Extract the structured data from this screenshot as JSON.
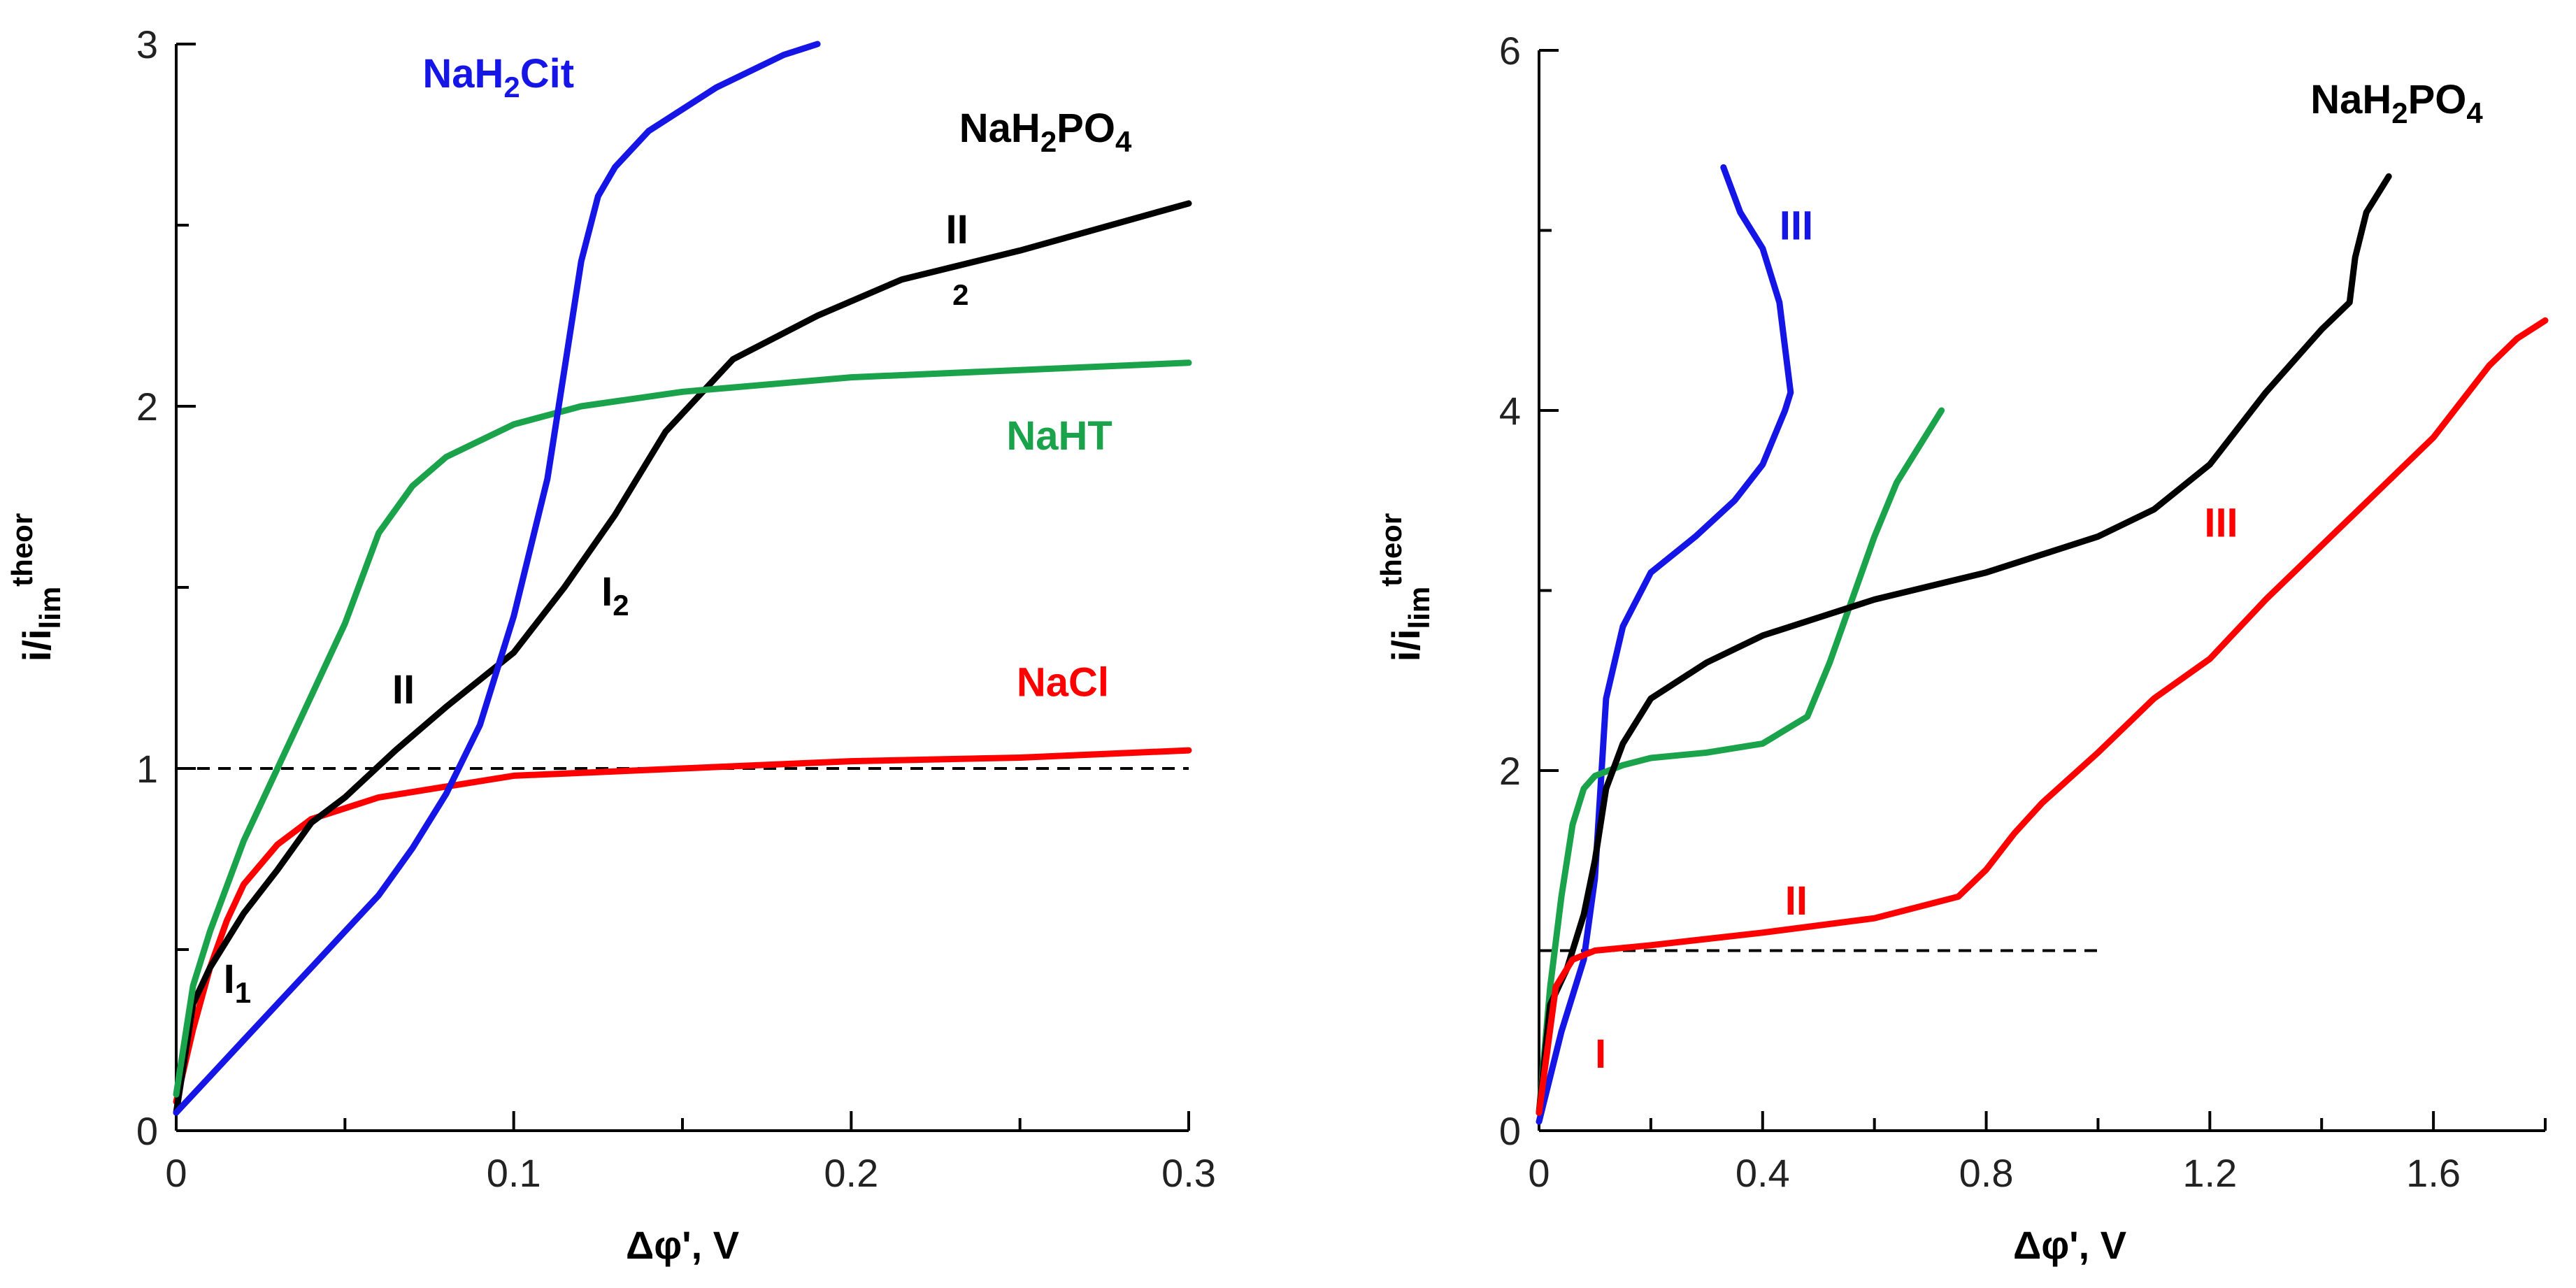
{
  "chart_data": [
    {
      "type": "line",
      "ylabel_main": "i/i",
      "ylabel_sub": "lim",
      "ylabel_sup": "theor",
      "xlabel": "Δφ', V",
      "xlim": [
        0,
        0.3
      ],
      "ylim": [
        0,
        3
      ],
      "xticks": [
        0,
        0.1,
        0.2,
        0.3
      ],
      "xtick_labels": [
        "0",
        "0.1",
        "0.2",
        "0.3"
      ],
      "yticks": [
        0,
        1,
        2,
        3
      ],
      "ytick_labels": [
        "0",
        "1",
        "2",
        "3"
      ],
      "reference_line": {
        "y": 1,
        "style": "dashed",
        "x_range": [
          0,
          0.3
        ]
      },
      "series": [
        {
          "name": "NaCl",
          "color": "#ff0000",
          "x": [
            0,
            0.005,
            0.01,
            0.015,
            0.02,
            0.03,
            0.04,
            0.06,
            0.08,
            0.1,
            0.15,
            0.2,
            0.25,
            0.3
          ],
          "y": [
            0.08,
            0.28,
            0.45,
            0.58,
            0.68,
            0.79,
            0.86,
            0.92,
            0.95,
            0.98,
            1.0,
            1.02,
            1.03,
            1.05
          ]
        },
        {
          "name": "NaH2PO4",
          "color": "#000000",
          "x": [
            0,
            0.005,
            0.01,
            0.02,
            0.03,
            0.04,
            0.05,
            0.065,
            0.08,
            0.1,
            0.115,
            0.13,
            0.145,
            0.165,
            0.19,
            0.215,
            0.25,
            0.3
          ],
          "y": [
            0.05,
            0.35,
            0.45,
            0.6,
            0.72,
            0.85,
            0.92,
            1.05,
            1.17,
            1.32,
            1.5,
            1.7,
            1.93,
            2.13,
            2.25,
            2.35,
            2.43,
            2.56
          ]
        },
        {
          "name": "NaHT",
          "color": "#1aa34a",
          "x": [
            0,
            0.005,
            0.01,
            0.02,
            0.03,
            0.04,
            0.05,
            0.06,
            0.07,
            0.08,
            0.1,
            0.12,
            0.15,
            0.2,
            0.25,
            0.3
          ],
          "y": [
            0.1,
            0.4,
            0.55,
            0.8,
            1.0,
            1.2,
            1.4,
            1.65,
            1.78,
            1.86,
            1.95,
            2.0,
            2.04,
            2.08,
            2.1,
            2.12
          ]
        },
        {
          "name": "NaH2Cit",
          "color": "#1515e6",
          "x": [
            0,
            0.01,
            0.02,
            0.03,
            0.04,
            0.05,
            0.06,
            0.07,
            0.08,
            0.09,
            0.1,
            0.11,
            0.115,
            0.12,
            0.125,
            0.13,
            0.14,
            0.16,
            0.18,
            0.19
          ],
          "y": [
            0.05,
            0.15,
            0.25,
            0.35,
            0.45,
            0.55,
            0.65,
            0.78,
            0.93,
            1.12,
            1.42,
            1.8,
            2.1,
            2.4,
            2.58,
            2.66,
            2.76,
            2.88,
            2.97,
            3.0
          ]
        }
      ],
      "annotations": [
        {
          "text": "NaH",
          "sub": "2",
          "text2": "Cit",
          "color": "#1515e6",
          "x": 0.073,
          "y": 2.88
        },
        {
          "text": "NaH",
          "sub": "2",
          "text2": "PO",
          "sub2": "4",
          "color": "#000000",
          "x": 0.232,
          "y": 2.73
        },
        {
          "text": "NaHT",
          "color": "#1aa34a",
          "x": 0.246,
          "y": 1.88
        },
        {
          "text": "NaCl",
          "color": "#ff0000",
          "x": 0.249,
          "y": 1.2
        },
        {
          "text": "II",
          "color": "#000000",
          "x": 0.228,
          "y": 2.45
        },
        {
          "text": "2",
          "color": "#000000",
          "x": 0.23,
          "y": 2.28,
          "small": true
        },
        {
          "text": "I",
          "sub": "2",
          "color": "#000000",
          "x": 0.126,
          "y": 1.45
        },
        {
          "text": "II",
          "color": "#000000",
          "x": 0.064,
          "y": 1.18
        },
        {
          "text": "I",
          "sub": "1",
          "color": "#000000",
          "x": 0.014,
          "y": 0.38
        }
      ]
    },
    {
      "type": "line",
      "ylabel_main": "i/i",
      "ylabel_sub": "lim",
      "ylabel_sup": "theor",
      "xlabel": "Δφ', V",
      "xlim": [
        0,
        1.8
      ],
      "ylim": [
        0,
        6
      ],
      "xticks": [
        0,
        0.4,
        0.8,
        1.2,
        1.6
      ],
      "xtick_labels": [
        "0",
        "0.4",
        "0.8",
        "1.2",
        "1.6"
      ],
      "yticks": [
        0,
        2,
        4,
        6
      ],
      "ytick_labels": [
        "0",
        "2",
        "4",
        "6"
      ],
      "reference_line": {
        "y": 1,
        "style": "dashed",
        "x_range": [
          0,
          1.0
        ]
      },
      "series": [
        {
          "name": "blue",
          "color": "#1515e6",
          "x": [
            0,
            0.02,
            0.04,
            0.06,
            0.08,
            0.1,
            0.12,
            0.15,
            0.2,
            0.28,
            0.35,
            0.4,
            0.44,
            0.45,
            0.43,
            0.4,
            0.36,
            0.33
          ],
          "y": [
            0.05,
            0.3,
            0.55,
            0.75,
            0.95,
            1.4,
            2.4,
            2.8,
            3.1,
            3.3,
            3.5,
            3.7,
            4.0,
            4.1,
            4.6,
            4.9,
            5.1,
            5.35
          ]
        },
        {
          "name": "green",
          "color": "#1aa34a",
          "x": [
            0,
            0.02,
            0.04,
            0.06,
            0.08,
            0.1,
            0.15,
            0.2,
            0.3,
            0.4,
            0.48,
            0.52,
            0.56,
            0.6,
            0.64,
            0.68,
            0.72
          ],
          "y": [
            0.1,
            0.8,
            1.3,
            1.7,
            1.9,
            1.97,
            2.03,
            2.07,
            2.1,
            2.15,
            2.3,
            2.6,
            2.95,
            3.3,
            3.6,
            3.8,
            4.0
          ]
        },
        {
          "name": "NaH2PO4",
          "color": "#000000",
          "x": [
            0,
            0.02,
            0.05,
            0.08,
            0.1,
            0.12,
            0.15,
            0.2,
            0.3,
            0.4,
            0.6,
            0.8,
            1.0,
            1.1,
            1.2,
            1.3,
            1.4,
            1.45,
            1.46,
            1.48,
            1.52
          ],
          "y": [
            0.1,
            0.7,
            0.9,
            1.2,
            1.5,
            1.9,
            2.15,
            2.4,
            2.6,
            2.75,
            2.95,
            3.1,
            3.3,
            3.45,
            3.7,
            4.1,
            4.45,
            4.6,
            4.85,
            5.1,
            5.3
          ]
        },
        {
          "name": "red",
          "color": "#ff0000",
          "x": [
            0,
            0.03,
            0.06,
            0.1,
            0.2,
            0.4,
            0.6,
            0.75,
            0.8,
            0.85,
            0.9,
            1.0,
            1.1,
            1.2,
            1.3,
            1.4,
            1.5,
            1.6,
            1.65,
            1.7,
            1.75,
            1.8
          ],
          "y": [
            0.1,
            0.8,
            0.95,
            1.0,
            1.03,
            1.1,
            1.18,
            1.3,
            1.45,
            1.65,
            1.82,
            2.1,
            2.4,
            2.62,
            2.95,
            3.25,
            3.55,
            3.85,
            4.05,
            4.25,
            4.4,
            4.5
          ]
        }
      ],
      "annotations": [
        {
          "text": "NaH",
          "sub": "2",
          "text2": "PO",
          "sub2": "4",
          "color": "#000000",
          "x": 1.38,
          "y": 5.65
        },
        {
          "text": "III",
          "color": "#1515e6",
          "x": 0.43,
          "y": 4.95
        },
        {
          "text": "III",
          "color": "#ff0000",
          "x": 1.19,
          "y": 3.3
        },
        {
          "text": "II",
          "color": "#ff0000",
          "x": 0.44,
          "y": 1.2
        },
        {
          "text": "I",
          "color": "#ff0000",
          "x": 0.1,
          "y": 0.35
        }
      ]
    }
  ]
}
